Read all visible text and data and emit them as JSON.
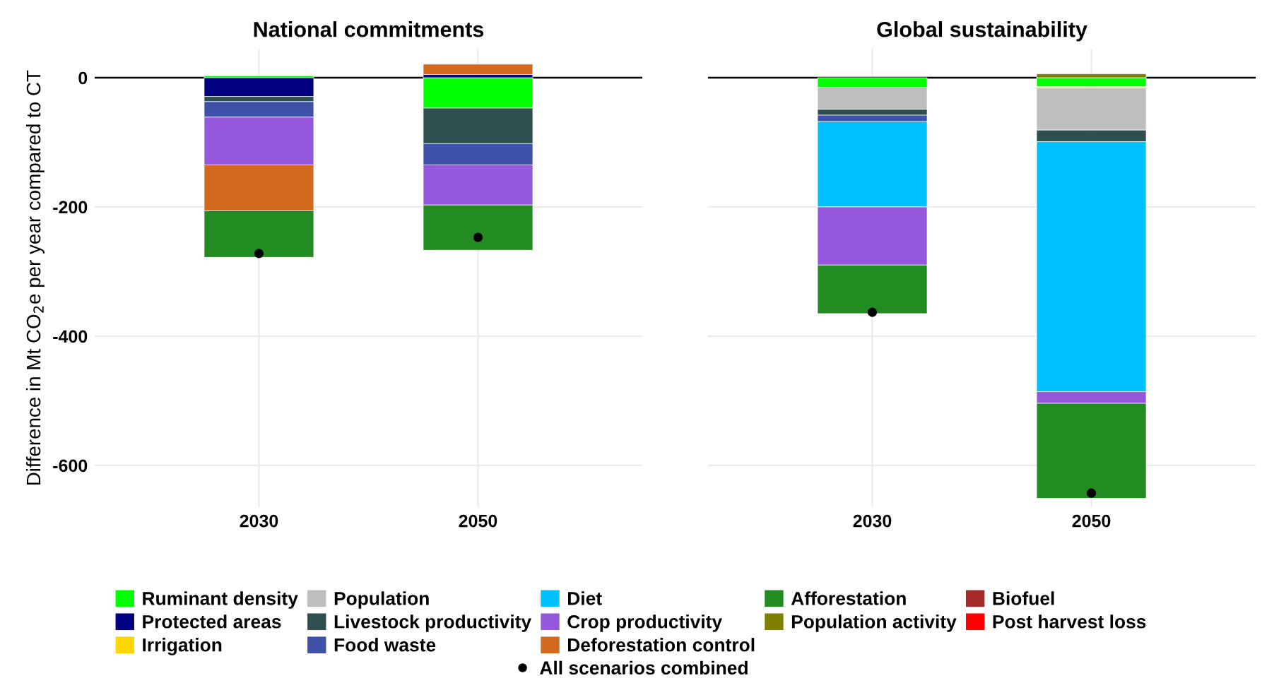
{
  "chart_data": [
    {
      "type": "bar",
      "title": "National commitments",
      "ylabel": "Difference in Mt CO$_{2}$e per year compared to CT",
      "categories": [
        "2030",
        "2050"
      ],
      "stacked": true,
      "ylim": [
        -665,
        45
      ],
      "yticks": [
        -600,
        -400,
        -200,
        0
      ],
      "grid": true,
      "legend": "bottom",
      "ref_lines": [
        {
          "axis": "y",
          "value": 0,
          "color": "#000000"
        }
      ],
      "series": [
        {
          "name": "Ruminant density",
          "color": "#00ff00",
          "values": [
            3,
            -47
          ]
        },
        {
          "name": "Protected areas",
          "color": "#000080",
          "values": [
            -29,
            5
          ]
        },
        {
          "name": "Irrigation",
          "color": "#ffd700",
          "values": [
            null,
            null
          ]
        },
        {
          "name": "Population",
          "color": "#bebebe",
          "values": [
            null,
            null
          ]
        },
        {
          "name": "Livestock productivity",
          "color": "#2f4f4f",
          "values": [
            -8,
            -55
          ]
        },
        {
          "name": "Food waste",
          "color": "#3f51a8",
          "values": [
            -24,
            -33
          ]
        },
        {
          "name": "Diet",
          "color": "#00bfff",
          "values": [
            null,
            null
          ]
        },
        {
          "name": "Crop productivity",
          "color": "#9558dd",
          "values": [
            -74,
            -62
          ]
        },
        {
          "name": "Deforestation control",
          "color": "#d2691e",
          "values": [
            -71,
            16
          ]
        },
        {
          "name": "Afforestation",
          "color": "#228b22",
          "values": [
            -72,
            -70
          ]
        },
        {
          "name": "Population activity",
          "color": "#808000",
          "values": [
            null,
            null
          ]
        },
        {
          "name": "Biofuel",
          "color": "#a52a2a",
          "values": [
            null,
            null
          ]
        },
        {
          "name": "Post harvest loss",
          "color": "#ff0000",
          "values": [
            null,
            null
          ]
        },
        {
          "name": "All scenarios combined",
          "type": "scatter",
          "marker": "circle",
          "color": "#000000",
          "values": [
            -272,
            -247
          ]
        }
      ]
    },
    {
      "type": "bar",
      "title": "Global sustainability",
      "categories": [
        "2030",
        "2050"
      ],
      "stacked": true,
      "ylim": [
        -665,
        45
      ],
      "tick_labels": "x",
      "grid": true,
      "ref_lines": [
        {
          "axis": "y",
          "value": 0,
          "color": "#000000"
        }
      ],
      "series": [
        {
          "color": "#00ff00",
          "values": [
            -15,
            -14
          ]
        },
        {
          "color": "#000080",
          "values": [
            null,
            null
          ]
        },
        {
          "color": "#ffd700",
          "values": [
            null,
            -2
          ]
        },
        {
          "color": "#bebebe",
          "values": [
            -34,
            -65
          ]
        },
        {
          "color": "#2f4f4f",
          "values": [
            -9,
            -18
          ]
        },
        {
          "color": "#3f51a8",
          "values": [
            -10,
            null
          ]
        },
        {
          "color": "#00bfff",
          "values": [
            -132,
            -387
          ]
        },
        {
          "color": "#9558dd",
          "values": [
            -90,
            -18
          ]
        },
        {
          "color": "#d2691e",
          "values": [
            null,
            null
          ]
        },
        {
          "color": "#228b22",
          "values": [
            -75,
            -147
          ]
        },
        {
          "color": "#808000",
          "values": [
            null,
            6
          ]
        },
        {
          "color": "#a52a2a",
          "values": [
            null,
            null
          ]
        },
        {
          "color": "#ff0000",
          "values": [
            null,
            null
          ]
        },
        {
          "type": "scatter",
          "marker": "circle",
          "color": "#000000",
          "values": [
            -363,
            -643
          ]
        }
      ]
    }
  ]
}
